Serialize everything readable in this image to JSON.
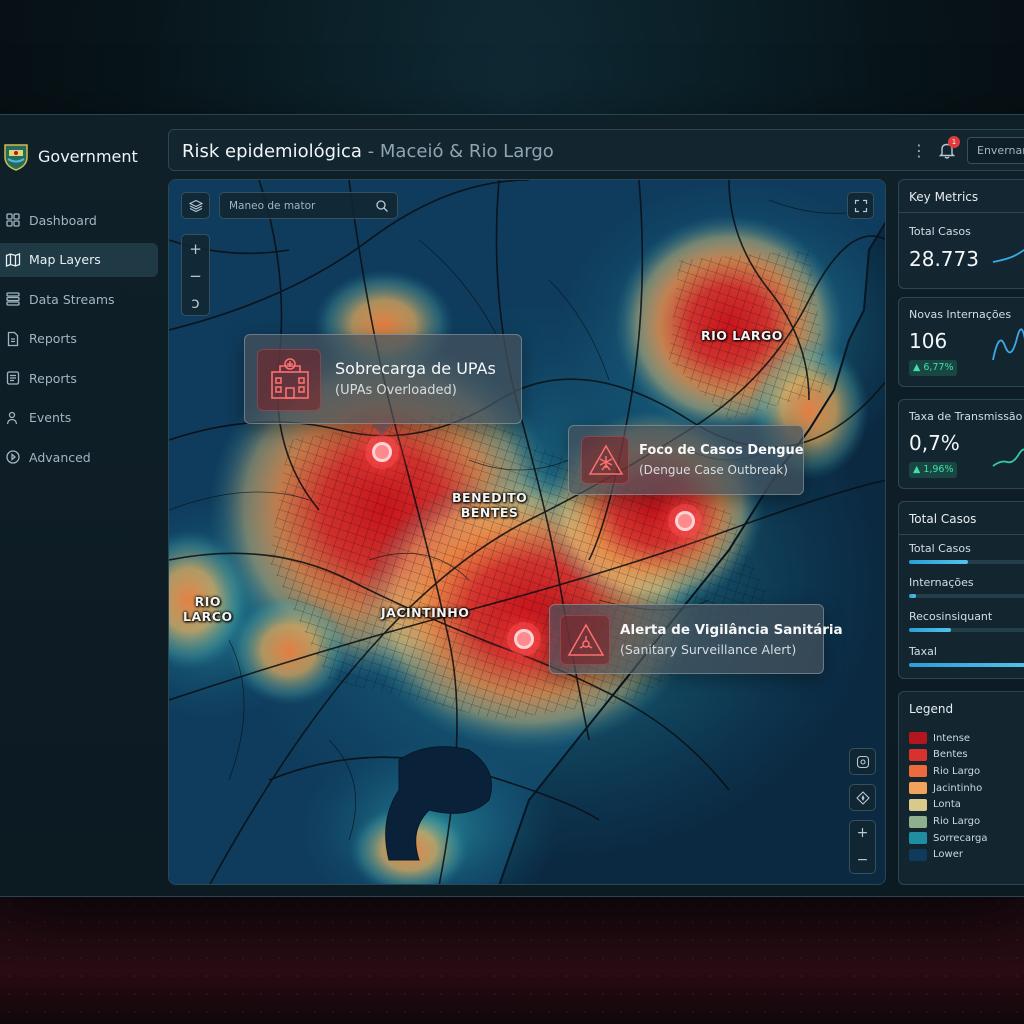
{
  "brand": {
    "name": "Government"
  },
  "sidebar": {
    "items": [
      {
        "label": "Dashboard",
        "icon": "grid-icon"
      },
      {
        "label": "Map Layers",
        "icon": "map-icon",
        "active": true
      },
      {
        "label": "Data Streams",
        "icon": "stack-icon"
      },
      {
        "label": "Reports",
        "icon": "document-icon"
      },
      {
        "label": "Reports",
        "icon": "list-document-icon"
      },
      {
        "label": "Events",
        "icon": "person-icon"
      },
      {
        "label": "Advanced",
        "icon": "play-circle-icon"
      }
    ]
  },
  "header": {
    "title_main": "Risk epidemiológica",
    "title_sep": " - ",
    "title_sub": "Maceió & Rio Largo",
    "notification_count": "1",
    "user_label": "Envernan"
  },
  "map": {
    "search_placeholder": "Maneo de mator",
    "zoom_in": "+",
    "zoom_out": "−",
    "zoom_reset": "ↄ",
    "cities": {
      "rio_largo_ne": "RIO LARGO",
      "benedito_bentes": "BENEDITO\nBENTES",
      "jacintinho": "JACINTINHO",
      "rio_largo_w": "RIO\nLARCO"
    },
    "alerts": [
      {
        "title": "Sobrecarga de UPAs",
        "subtitle": "(UPAs Overloaded)",
        "icon": "hospital-icon"
      },
      {
        "title": "Foco de Casos Dengue",
        "subtitle": "(Dengue Case Outbreak)",
        "icon": "mosquito-warning-icon"
      },
      {
        "title": "Alerta de Vigilância Sanitária",
        "subtitle": "(Sanitary Surveillance Alert)",
        "icon": "biohazard-warning-icon"
      }
    ],
    "bottom_zoom_in": "+",
    "bottom_zoom_out": "−"
  },
  "metrics": {
    "title": "Key Metrics",
    "total_casos_label": "Total Casos",
    "total_casos_value": "28.773",
    "novas_label": "Novas Internações",
    "novas_value": "106",
    "novas_change": "▲ 6,77%",
    "taxa_label": "Taxa de Transmissão",
    "taxa_value": "0,7%",
    "taxa_change": "▲ 1,96%"
  },
  "breakdown": {
    "title": "Total Casos",
    "rows": [
      {
        "label": "Total Casos",
        "fraction": 0.45
      },
      {
        "label": "Internações",
        "fraction": 0.05
      },
      {
        "label": "Recosinsiquant",
        "fraction": 0.32
      },
      {
        "label": "Taxal",
        "fraction": 0.92
      }
    ]
  },
  "legend": {
    "title": "Legend",
    "items": [
      {
        "label": "Intense",
        "color": "#b3161f"
      },
      {
        "label": "Bentes",
        "color": "#d8322e"
      },
      {
        "label": "Rio Largo",
        "color": "#ec6a3c"
      },
      {
        "label": "Jacintinho",
        "color": "#f2a25a"
      },
      {
        "label": "Lonta",
        "color": "#d9c98a"
      },
      {
        "label": "Rio Largo",
        "color": "#8fb08c"
      },
      {
        "label": "Sorrecarga",
        "color": "#1f8ea0"
      },
      {
        "label": "Lower",
        "color": "#0f3a5c"
      }
    ]
  }
}
